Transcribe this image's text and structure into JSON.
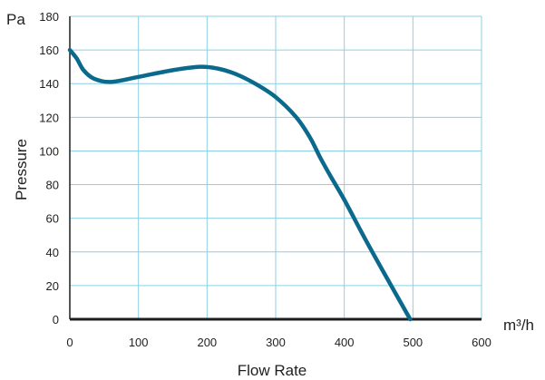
{
  "chart_data": {
    "type": "line",
    "title": "",
    "xlabel": "Flow Rate",
    "ylabel": "Pressure",
    "x_unit": "m³/h",
    "y_unit": "Pa",
    "xlim": [
      0,
      600
    ],
    "ylim": [
      0,
      180
    ],
    "x_ticks": [
      "0",
      "100",
      "200",
      "300",
      "400",
      "500",
      "600"
    ],
    "y_ticks": [
      "0",
      "20",
      "40",
      "60",
      "80",
      "100",
      "120",
      "140",
      "160",
      "180"
    ],
    "grid": true,
    "legend": "none",
    "series": [
      {
        "color": "#0b6a8c",
        "x": [
          0,
          10,
          20,
          35,
          60,
          100,
          150,
          190,
          215,
          240,
          270,
          300,
          330,
          350,
          365,
          380,
          400,
          430,
          460,
          496
        ],
        "y": [
          160,
          155,
          148,
          143,
          141,
          144,
          148,
          150,
          149,
          146,
          140,
          132,
          120,
          108,
          96,
          85,
          71,
          48,
          26,
          0
        ]
      }
    ]
  },
  "colors": {
    "grid": "#8dcfe6",
    "axis": "#1f1f1f",
    "line": "#0b6a8c"
  }
}
